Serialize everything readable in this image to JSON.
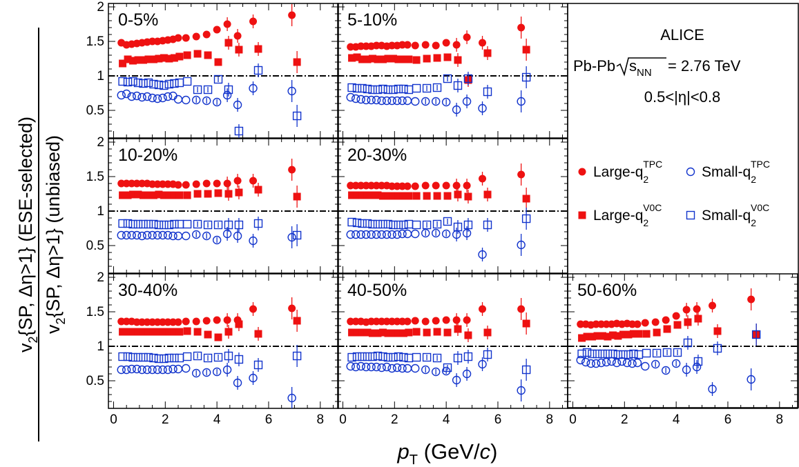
{
  "chart_data": {
    "type": "scatter",
    "xlabel": "pT (GeV/c)",
    "ylabel_numerator": "v2{SP, Δη>1} (ESE-selected)",
    "ylabel_denominator": "v2{SP, Δη>1} (unbiased)",
    "xlim": [
      -0.2,
      8.7
    ],
    "ylim": [
      0.1,
      2.05
    ],
    "x_ticks": [
      0,
      2,
      4,
      6,
      8
    ],
    "y_ticks": [
      0.5,
      1,
      1.5,
      2
    ],
    "reference_line": 1,
    "info": {
      "experiment": "ALICE",
      "system_prefix": "Pb-Pb",
      "energy_sub": "NN",
      "energy_value": "= 2.76 TeV",
      "eta_range": "0.5<|η|<0.8"
    },
    "legend": [
      {
        "key": "large_tpc",
        "base": "Large-q",
        "sub": "2",
        "sup": "TPC"
      },
      {
        "key": "small_tpc",
        "base": "Small-q",
        "sub": "2",
        "sup": "TPC"
      },
      {
        "key": "large_v0c",
        "base": "Large-q",
        "sub": "2",
        "sup": "V0C"
      },
      {
        "key": "small_v0c",
        "base": "Small-q",
        "sub": "2",
        "sup": "V0C"
      }
    ],
    "colors": {
      "large": "#ee1111",
      "small": "#1133cc"
    },
    "x": [
      0.3,
      0.5,
      0.7,
      0.9,
      1.1,
      1.3,
      1.5,
      1.7,
      1.9,
      2.1,
      2.3,
      2.5,
      2.8,
      3.2,
      3.6,
      4.0,
      4.4,
      4.8,
      5.4,
      6.9
    ],
    "x_v0c": [
      0.35,
      0.55,
      0.75,
      0.95,
      1.15,
      1.35,
      1.55,
      1.75,
      1.95,
      2.15,
      2.35,
      2.55,
      2.85,
      3.25,
      3.65,
      4.05,
      4.45,
      4.85,
      5.6,
      7.1
    ],
    "panels": [
      {
        "label": "0-5%",
        "large_tpc": [
          1.48,
          1.45,
          1.46,
          1.47,
          1.48,
          1.49,
          1.5,
          1.5,
          1.51,
          1.52,
          1.53,
          1.55,
          1.55,
          1.57,
          1.6,
          1.67,
          1.75,
          1.58,
          1.79,
          1.88
        ],
        "small_tpc": [
          0.72,
          0.74,
          0.7,
          0.71,
          0.69,
          0.7,
          0.68,
          0.67,
          0.68,
          0.7,
          0.71,
          0.66,
          0.65,
          0.65,
          0.64,
          0.62,
          0.72,
          0.58,
          0.82,
          0.78
        ],
        "large_v0c": [
          1.18,
          1.24,
          1.22,
          1.23,
          1.23,
          1.24,
          1.24,
          1.25,
          1.26,
          1.25,
          1.26,
          1.28,
          1.3,
          1.32,
          1.3,
          1.2,
          1.48,
          1.38,
          1.39,
          1.2
        ],
        "small_v0c": [
          0.92,
          0.91,
          0.92,
          0.9,
          0.89,
          0.9,
          0.88,
          0.87,
          0.86,
          0.88,
          0.89,
          0.9,
          0.92,
          0.8,
          0.8,
          0.95,
          0.8,
          0.2,
          1.08,
          0.42
        ]
      },
      {
        "label": "5-10%",
        "large_tpc": [
          1.42,
          1.42,
          1.43,
          1.43,
          1.43,
          1.44,
          1.44,
          1.43,
          1.44,
          1.44,
          1.45,
          1.45,
          1.44,
          1.45,
          1.44,
          1.48,
          1.45,
          1.56,
          1.48,
          1.7
        ],
        "small_tpc": [
          0.69,
          0.67,
          0.66,
          0.65,
          0.65,
          0.65,
          0.64,
          0.64,
          0.64,
          0.64,
          0.64,
          0.64,
          0.63,
          0.63,
          0.63,
          0.62,
          0.51,
          0.63,
          0.53,
          0.63
        ],
        "large_v0c": [
          1.26,
          1.27,
          1.24,
          1.24,
          1.25,
          1.24,
          1.24,
          1.25,
          1.25,
          1.24,
          1.24,
          1.24,
          1.23,
          1.25,
          1.26,
          1.27,
          1.23,
          0.94,
          1.33,
          1.38
        ],
        "small_v0c": [
          0.83,
          0.82,
          0.82,
          0.81,
          0.8,
          0.8,
          0.81,
          0.8,
          0.8,
          0.81,
          0.81,
          0.8,
          0.82,
          0.82,
          0.83,
          0.96,
          0.86,
          0.96,
          0.77,
          0.98
        ]
      },
      {
        "label": "10-20%",
        "large_tpc": [
          1.4,
          1.4,
          1.4,
          1.4,
          1.4,
          1.4,
          1.39,
          1.39,
          1.39,
          1.39,
          1.39,
          1.38,
          1.38,
          1.39,
          1.4,
          1.4,
          1.4,
          1.44,
          1.44,
          1.6
        ],
        "small_tpc": [
          0.65,
          0.65,
          0.65,
          0.65,
          0.64,
          0.65,
          0.65,
          0.65,
          0.65,
          0.65,
          0.64,
          0.64,
          0.64,
          0.66,
          0.64,
          0.58,
          0.67,
          0.64,
          0.57,
          0.62
        ],
        "large_v0c": [
          1.23,
          1.23,
          1.24,
          1.24,
          1.23,
          1.23,
          1.23,
          1.24,
          1.23,
          1.23,
          1.23,
          1.23,
          1.23,
          1.25,
          1.25,
          1.26,
          1.25,
          1.27,
          1.31,
          1.21
        ],
        "small_v0c": [
          0.82,
          0.82,
          0.81,
          0.81,
          0.81,
          0.81,
          0.81,
          0.8,
          0.8,
          0.8,
          0.81,
          0.81,
          0.81,
          0.81,
          0.8,
          0.8,
          0.8,
          0.8,
          0.82,
          0.65
        ]
      },
      {
        "label": "20-30%",
        "large_tpc": [
          1.37,
          1.37,
          1.37,
          1.37,
          1.37,
          1.37,
          1.37,
          1.37,
          1.36,
          1.36,
          1.36,
          1.36,
          1.36,
          1.37,
          1.37,
          1.37,
          1.37,
          1.37,
          1.47,
          1.53
        ],
        "small_tpc": [
          0.66,
          0.66,
          0.66,
          0.66,
          0.66,
          0.66,
          0.66,
          0.66,
          0.66,
          0.66,
          0.67,
          0.67,
          0.67,
          0.68,
          0.68,
          0.67,
          0.66,
          0.68,
          0.37,
          0.51
        ],
        "large_v0c": [
          1.23,
          1.23,
          1.23,
          1.23,
          1.23,
          1.23,
          1.22,
          1.22,
          1.22,
          1.22,
          1.22,
          1.22,
          1.22,
          1.22,
          1.22,
          1.22,
          1.24,
          1.21,
          1.24,
          1.18
        ],
        "small_v0c": [
          0.84,
          0.83,
          0.82,
          0.82,
          0.81,
          0.81,
          0.81,
          0.81,
          0.8,
          0.8,
          0.8,
          0.81,
          0.8,
          0.8,
          0.81,
          0.85,
          0.77,
          0.8,
          0.8,
          0.89
        ]
      },
      {
        "label": "30-40%",
        "large_tpc": [
          1.36,
          1.36,
          1.36,
          1.35,
          1.35,
          1.35,
          1.35,
          1.35,
          1.35,
          1.35,
          1.35,
          1.35,
          1.36,
          1.36,
          1.37,
          1.38,
          1.38,
          1.38,
          1.54,
          1.55
        ],
        "small_tpc": [
          0.66,
          0.66,
          0.67,
          0.67,
          0.66,
          0.66,
          0.66,
          0.66,
          0.66,
          0.66,
          0.67,
          0.67,
          0.68,
          0.61,
          0.62,
          0.63,
          0.66,
          0.47,
          0.54,
          0.25
        ],
        "large_v0c": [
          1.21,
          1.21,
          1.21,
          1.21,
          1.21,
          1.21,
          1.21,
          1.21,
          1.21,
          1.21,
          1.21,
          1.21,
          1.22,
          1.21,
          1.17,
          1.13,
          1.21,
          1.32,
          1.18,
          1.37
        ],
        "small_v0c": [
          0.85,
          0.85,
          0.84,
          0.84,
          0.84,
          0.84,
          0.83,
          0.82,
          0.82,
          0.83,
          0.83,
          0.83,
          0.85,
          0.86,
          0.83,
          0.84,
          0.86,
          0.81,
          0.73,
          0.86
        ]
      },
      {
        "label": "40-50%",
        "large_tpc": [
          1.36,
          1.36,
          1.36,
          1.35,
          1.36,
          1.36,
          1.36,
          1.36,
          1.36,
          1.36,
          1.36,
          1.36,
          1.37,
          1.36,
          1.37,
          1.38,
          1.38,
          1.38,
          1.54,
          1.54
        ],
        "small_tpc": [
          0.71,
          0.7,
          0.71,
          0.7,
          0.7,
          0.7,
          0.69,
          0.7,
          0.68,
          0.69,
          0.68,
          0.68,
          0.68,
          0.66,
          0.63,
          0.64,
          0.51,
          0.6,
          0.74,
          0.36
        ],
        "large_v0c": [
          1.2,
          1.2,
          1.2,
          1.2,
          1.19,
          1.19,
          1.2,
          1.19,
          1.19,
          1.19,
          1.19,
          1.2,
          1.21,
          1.2,
          1.21,
          1.2,
          1.25,
          1.16,
          1.2,
          1.33
        ],
        "small_v0c": [
          0.84,
          0.85,
          0.85,
          0.85,
          0.85,
          0.86,
          0.85,
          0.84,
          0.84,
          0.85,
          0.84,
          0.83,
          0.84,
          0.84,
          0.83,
          0.69,
          0.83,
          0.85,
          0.88,
          0.66
        ]
      },
      {
        "label": "50-60%",
        "large_tpc": [
          1.32,
          1.32,
          1.31,
          1.32,
          1.32,
          1.32,
          1.32,
          1.33,
          1.32,
          1.33,
          1.32,
          1.32,
          1.34,
          1.35,
          1.38,
          1.44,
          1.53,
          1.54,
          1.59,
          1.68
        ],
        "small_tpc": [
          0.8,
          0.77,
          0.75,
          0.75,
          0.76,
          0.77,
          0.78,
          0.76,
          0.78,
          0.76,
          0.75,
          0.76,
          0.71,
          0.74,
          0.65,
          0.75,
          0.66,
          0.7,
          0.38,
          0.52
        ],
        "large_v0c": [
          1.12,
          1.14,
          1.14,
          1.15,
          1.15,
          1.14,
          1.16,
          1.15,
          1.17,
          1.17,
          1.18,
          1.18,
          1.18,
          1.2,
          1.25,
          1.31,
          1.35,
          1.4,
          1.22,
          1.17
        ],
        "small_v0c": [
          0.89,
          0.91,
          0.89,
          0.89,
          0.89,
          0.89,
          0.89,
          0.88,
          0.88,
          0.88,
          0.89,
          0.88,
          0.9,
          0.9,
          0.91,
          0.91,
          1.05,
          0.78,
          0.97,
          1.17
        ]
      }
    ]
  }
}
